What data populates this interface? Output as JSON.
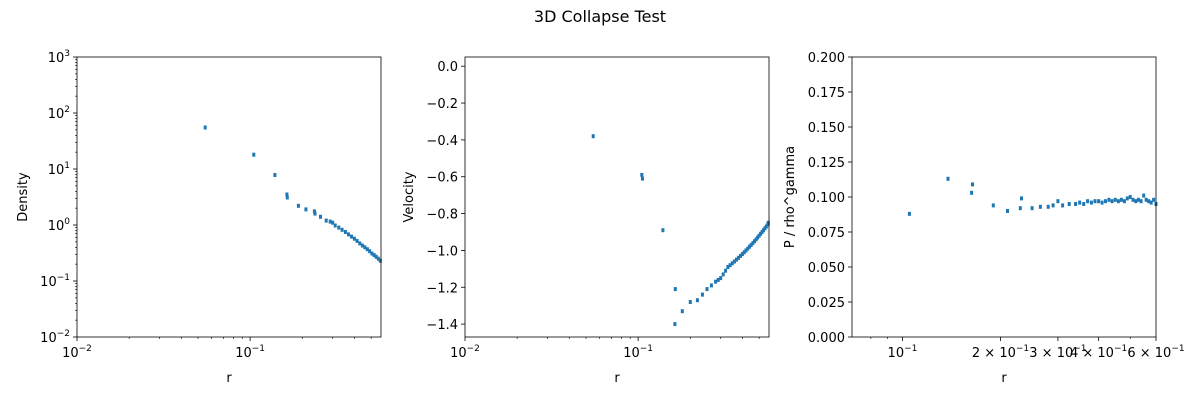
{
  "figure": {
    "title": "3D Collapse Test"
  },
  "chart_data": [
    {
      "type": "scatter",
      "title": "",
      "xlabel": "r",
      "ylabel": "Density",
      "xscale": "log",
      "yscale": "log",
      "xlim": [
        0.01,
        0.57
      ],
      "ylim": [
        0.01,
        1000
      ],
      "marker_color": "#1f77b4",
      "x_ticks": [
        {
          "label": "10",
          "sup": "−2"
        },
        {
          "label": "10",
          "sup": "−1"
        }
      ],
      "y_ticks": [
        {
          "label": "10",
          "sup": "−2"
        },
        {
          "label": "10",
          "sup": "−1"
        },
        {
          "label": "10",
          "sup": "0"
        },
        {
          "label": "10",
          "sup": "1"
        },
        {
          "label": "10",
          "sup": "2"
        },
        {
          "label": "10",
          "sup": "3"
        }
      ],
      "x": [
        0.055,
        0.105,
        0.139,
        0.163,
        0.164,
        0.19,
        0.21,
        0.235,
        0.237,
        0.255,
        0.275,
        0.29,
        0.3,
        0.31,
        0.325,
        0.34,
        0.355,
        0.37,
        0.385,
        0.4,
        0.415,
        0.43,
        0.445,
        0.46,
        0.475,
        0.49,
        0.505,
        0.52,
        0.535,
        0.55,
        0.565
      ],
      "y": [
        55,
        18,
        7.8,
        3.5,
        3.1,
        2.2,
        1.9,
        1.75,
        1.6,
        1.4,
        1.2,
        1.15,
        1.1,
        0.98,
        0.9,
        0.82,
        0.75,
        0.68,
        0.62,
        0.57,
        0.52,
        0.47,
        0.43,
        0.4,
        0.37,
        0.34,
        0.31,
        0.29,
        0.27,
        0.25,
        0.23
      ]
    },
    {
      "type": "scatter",
      "title": "",
      "xlabel": "r",
      "ylabel": "Velocity",
      "xscale": "log",
      "yscale": "linear",
      "xlim": [
        0.01,
        0.57
      ],
      "ylim": [
        -1.47,
        0.05
      ],
      "marker_color": "#1f77b4",
      "x_ticks": [
        {
          "label": "10",
          "sup": "−2"
        },
        {
          "label": "10",
          "sup": "−1"
        }
      ],
      "y_ticks": [
        "0.0",
        "−0.2",
        "−0.4",
        "−0.6",
        "−0.8",
        "−1.0",
        "−1.2",
        "−1.4"
      ],
      "x": [
        0.055,
        0.105,
        0.106,
        0.139,
        0.163,
        0.164,
        0.18,
        0.2,
        0.22,
        0.235,
        0.25,
        0.265,
        0.28,
        0.29,
        0.3,
        0.31,
        0.32,
        0.33,
        0.34,
        0.35,
        0.36,
        0.37,
        0.38,
        0.39,
        0.4,
        0.41,
        0.42,
        0.43,
        0.44,
        0.45,
        0.46,
        0.47,
        0.48,
        0.49,
        0.5,
        0.51,
        0.52,
        0.53,
        0.54,
        0.55,
        0.56,
        0.565
      ],
      "y": [
        -0.38,
        -0.59,
        -0.61,
        -0.89,
        -1.4,
        -1.21,
        -1.33,
        -1.28,
        -1.27,
        -1.24,
        -1.21,
        -1.19,
        -1.17,
        -1.16,
        -1.15,
        -1.13,
        -1.11,
        -1.09,
        -1.08,
        -1.07,
        -1.06,
        -1.05,
        -1.04,
        -1.03,
        -1.02,
        -1.01,
        -1.0,
        -0.99,
        -0.98,
        -0.97,
        -0.96,
        -0.95,
        -0.94,
        -0.93,
        -0.92,
        -0.91,
        -0.9,
        -0.89,
        -0.88,
        -0.87,
        -0.86,
        -0.85
      ]
    },
    {
      "type": "scatter",
      "title": "",
      "xlabel": "r",
      "ylabel": "P / rho^gamma",
      "xscale": "log",
      "yscale": "linear",
      "xlim": [
        0.07,
        0.6
      ],
      "ylim": [
        0.0,
        0.2
      ],
      "marker_color": "#1f77b4",
      "x_ticks": [
        {
          "label": "10",
          "sup": "−1"
        },
        {
          "label": "2 × 10",
          "sup": "−1"
        },
        {
          "label": "3 × 10",
          "sup": "−1"
        },
        {
          "label": "4 × 10",
          "sup": "−1"
        },
        {
          "label": "6 × 10",
          "sup": "−1"
        }
      ],
      "y_ticks": [
        "0.000",
        "0.025",
        "0.050",
        "0.075",
        "0.100",
        "0.125",
        "0.150",
        "0.175",
        "0.200"
      ],
      "x": [
        0.105,
        0.138,
        0.163,
        0.164,
        0.19,
        0.21,
        0.23,
        0.232,
        0.25,
        0.265,
        0.28,
        0.29,
        0.3,
        0.31,
        0.325,
        0.34,
        0.35,
        0.36,
        0.37,
        0.38,
        0.39,
        0.4,
        0.41,
        0.42,
        0.43,
        0.44,
        0.45,
        0.46,
        0.47,
        0.48,
        0.49,
        0.5,
        0.51,
        0.52,
        0.53,
        0.54,
        0.55,
        0.56,
        0.57,
        0.58,
        0.59,
        0.6
      ],
      "y": [
        0.088,
        0.113,
        0.103,
        0.109,
        0.094,
        0.09,
        0.092,
        0.099,
        0.092,
        0.093,
        0.093,
        0.094,
        0.097,
        0.094,
        0.095,
        0.095,
        0.096,
        0.095,
        0.097,
        0.096,
        0.097,
        0.097,
        0.096,
        0.097,
        0.098,
        0.097,
        0.098,
        0.097,
        0.098,
        0.097,
        0.099,
        0.1,
        0.098,
        0.097,
        0.098,
        0.097,
        0.101,
        0.098,
        0.097,
        0.096,
        0.098,
        0.095
      ]
    }
  ]
}
